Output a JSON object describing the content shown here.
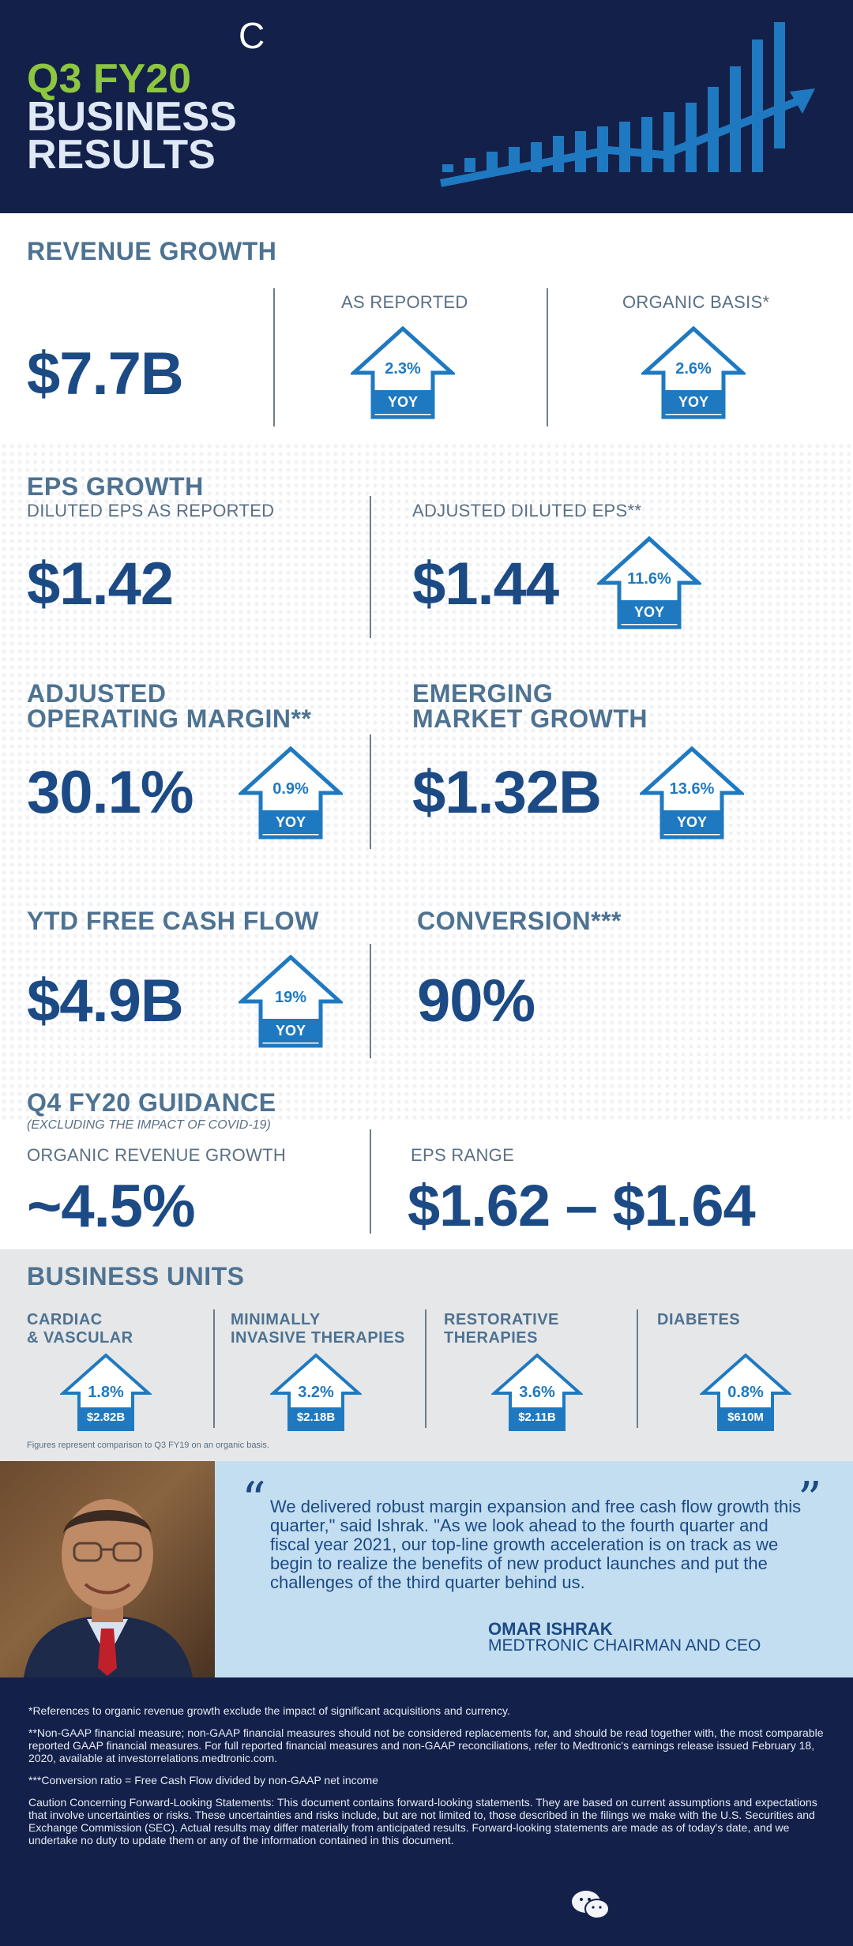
{
  "header": {
    "brand_fragment": "C",
    "title_line1": "Q3 FY20",
    "title_line2": "BUSINESS",
    "title_line3": "RESULTS",
    "colors": {
      "navy": "#13204a",
      "green": "#8dc63f",
      "blue": "#1f79c0"
    }
  },
  "revenue": {
    "title": "REVENUE GROWTH",
    "value": "$7.7B",
    "as_reported_label": "AS REPORTED",
    "as_reported_pct": "2.3%",
    "organic_label": "ORGANIC BASIS*",
    "organic_pct": "2.6%",
    "yoy": "YOY"
  },
  "eps": {
    "title": "EPS GROWTH",
    "diluted_label": "DILUTED EPS AS REPORTED",
    "diluted_value": "$1.42",
    "adjusted_label": "ADJUSTED DILUTED EPS**",
    "adjusted_value": "$1.44",
    "adjusted_pct": "11.6%",
    "yoy": "YOY"
  },
  "margin": {
    "title_line1": "ADJUSTED",
    "title_line2": "OPERATING MARGIN**",
    "value": "30.1%",
    "pct": "0.9%",
    "yoy": "YOY"
  },
  "emerging": {
    "title_line1": "EMERGING",
    "title_line2": "MARKET GROWTH",
    "value": "$1.32B",
    "pct": "13.6%",
    "yoy": "YOY"
  },
  "cashflow": {
    "title": "YTD FREE CASH FLOW",
    "value": "$4.9B",
    "pct": "19%",
    "yoy": "YOY"
  },
  "conversion": {
    "title": "CONVERSION***",
    "value": "90%"
  },
  "guidance": {
    "title": "Q4 FY20 GUIDANCE",
    "subtitle": "(EXCLUDING THE IMPACT OF COVID-19)",
    "organic_label": "ORGANIC REVENUE GROWTH",
    "organic_value": "~4.5%",
    "eps_label": "EPS RANGE",
    "eps_value": "$1.62 – $1.64"
  },
  "business_units": {
    "title": "BUSINESS UNITS",
    "units": [
      {
        "name_line1": "CARDIAC",
        "name_line2": "& VASCULAR",
        "pct": "1.8%",
        "value": "$2.82B"
      },
      {
        "name_line1": "MINIMALLY",
        "name_line2": "INVASIVE THERAPIES",
        "pct": "3.2%",
        "value": "$2.18B"
      },
      {
        "name_line1": "RESTORATIVE",
        "name_line2": "THERAPIES",
        "pct": "3.6%",
        "value": "$2.11B"
      },
      {
        "name_line1": "DIABETES",
        "name_line2": "",
        "pct": "0.8%",
        "value": "$610M"
      }
    ],
    "note": "Figures represent comparison to Q3 FY19 on an organic basis."
  },
  "quote": {
    "text": "We delivered robust margin expansion and free cash flow growth this quarter,\" said Ishrak. \"As we look ahead to the fourth quarter and fiscal year 2021, our top-line growth acceleration is on track as we begin to realize the benefits of new product launches and put the challenges of the third quarter behind us.",
    "name": "OMAR ISHRAK",
    "role": "MEDTRONIC CHAIRMAN AND CEO"
  },
  "footer": {
    "note1": "*References to organic revenue growth exclude the impact of significant acquisitions and currency.",
    "note2": "**Non-GAAP financial measure; non-GAAP financial measures should not be considered replacements for, and should be read together with, the most comparable reported GAAP financial measures. For full reported financial measures and non-GAAP reconciliations, refer to Medtronic's earnings release issued February 18, 2020, available at investorrelations.medtronic.com.",
    "note3": "***Conversion ratio = Free Cash Flow divided by non-GAAP net income",
    "note4": "Caution Concerning Forward-Looking Statements: This document contains forward-looking statements. They are based on current assumptions and expectations that involve uncertainties or risks. These uncertainties and risks include, but are not limited to, those described in the filings we make with the U.S. Securities and Exchange Commission (SEC). Actual results may differ materially from anticipated results. Forward-looking statements are made as of today's date, and we undertake no duty to update them or any of the information contained in this document."
  }
}
